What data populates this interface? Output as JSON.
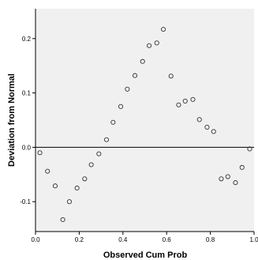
{
  "chart_data": {
    "type": "scatter",
    "title": "",
    "xlabel": "Observed Cum Prob",
    "ylabel": "Deviation from Normal",
    "xlim": [
      0,
      1
    ],
    "ylim": [
      -0.155,
      0.255
    ],
    "x_ticks": [
      0.0,
      0.2,
      0.4,
      0.6,
      0.8,
      1.0
    ],
    "x_tick_labels": [
      "0.0",
      "0.2",
      "0.4",
      "0.6",
      "0.8",
      "1.0"
    ],
    "y_ticks": [
      -0.1,
      0.0,
      0.1,
      0.2
    ],
    "y_tick_labels": [
      "-0.1",
      "0.0",
      "0.1",
      "0.2"
    ],
    "reference_line_y": 0,
    "grid": false,
    "colors": {
      "plot_background": "#f0f0f0",
      "marker_stroke": "#333333",
      "reference_line": "#000000"
    },
    "series": [
      {
        "x": [
          0.02,
          0.055,
          0.09,
          0.125,
          0.155,
          0.19,
          0.225,
          0.255,
          0.29,
          0.325,
          0.355,
          0.39,
          0.42,
          0.455,
          0.49,
          0.52,
          0.555,
          0.585,
          0.62,
          0.655,
          0.685,
          0.72,
          0.75,
          0.785,
          0.815,
          0.85,
          0.88,
          0.915,
          0.945,
          0.98
        ],
        "y": [
          -0.01,
          -0.044,
          -0.071,
          -0.133,
          -0.1,
          -0.075,
          -0.058,
          -0.032,
          -0.012,
          0.014,
          0.046,
          0.075,
          0.107,
          0.132,
          0.158,
          0.187,
          0.192,
          0.217,
          0.131,
          0.078,
          0.085,
          0.088,
          0.051,
          0.037,
          0.029,
          -0.058,
          -0.054,
          -0.065,
          -0.037,
          -0.003
        ]
      }
    ]
  }
}
